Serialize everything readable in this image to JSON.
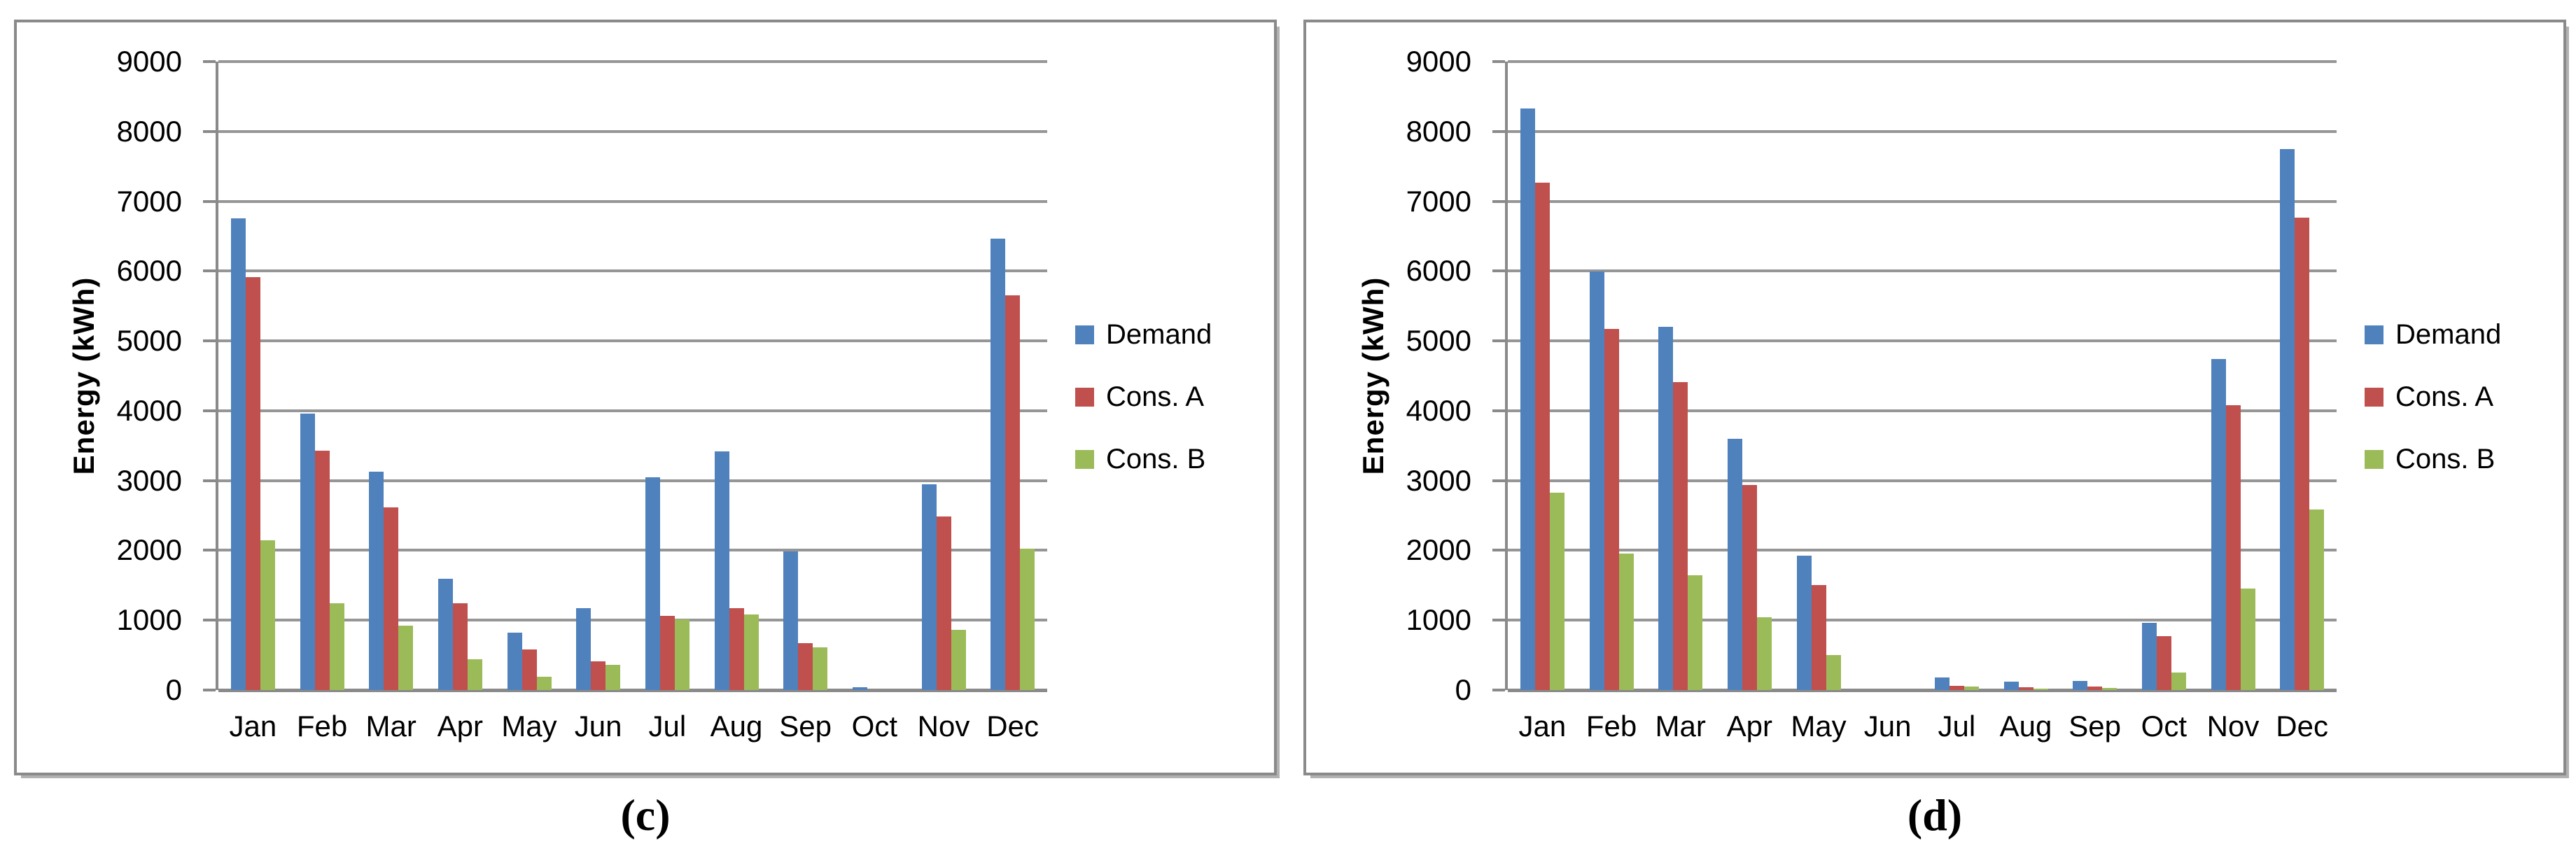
{
  "axis": {
    "ylabel": "Energy (kWh)",
    "ymin": 0,
    "ymax": 9000,
    "ytick_step": 1000,
    "yticks": [
      0,
      1000,
      2000,
      3000,
      4000,
      5000,
      6000,
      7000,
      8000,
      9000
    ]
  },
  "legend": [
    "Demand",
    "Cons. A",
    "Cons. B"
  ],
  "colors": {
    "demand": "#4F81BD",
    "cons_a": "#C0504D",
    "cons_b": "#9BBB59",
    "gridline": "#969696",
    "axis": "#8A8A8A",
    "panel_border": "#8A8A8A"
  },
  "chart_data": [
    {
      "type": "bar",
      "caption": "(c)",
      "title": "",
      "xlabel": "",
      "ylabel": "Energy (kWh)",
      "ylim": [
        0,
        9000
      ],
      "ytick_step": 1000,
      "grid": true,
      "legend_position": "right",
      "categories": [
        "Jan",
        "Feb",
        "Mar",
        "Apr",
        "May",
        "Jun",
        "Jul",
        "Aug",
        "Sep",
        "Oct",
        "Nov",
        "Dec"
      ],
      "series": [
        {
          "name": "Demand",
          "color": "#4F81BD",
          "values": [
            6760,
            3960,
            3130,
            1590,
            820,
            1170,
            3050,
            3420,
            1980,
            40,
            2950,
            6460
          ]
        },
        {
          "name": "Cons. A",
          "color": "#C0504D",
          "values": [
            5910,
            3430,
            2620,
            1240,
            580,
            410,
            1060,
            1170,
            670,
            0,
            2490,
            5650
          ]
        },
        {
          "name": "Cons. B",
          "color": "#9BBB59",
          "values": [
            2140,
            1240,
            920,
            440,
            190,
            360,
            1010,
            1080,
            610,
            0,
            860,
            2020
          ]
        }
      ]
    },
    {
      "type": "bar",
      "caption": "(d)",
      "title": "",
      "xlabel": "",
      "ylabel": "Energy (kWh)",
      "ylim": [
        0,
        9000
      ],
      "ytick_step": 1000,
      "grid": true,
      "legend_position": "right",
      "categories": [
        "Jan",
        "Feb",
        "Mar",
        "Apr",
        "May",
        "Jun",
        "Jul",
        "Aug",
        "Sep",
        "Oct",
        "Nov",
        "Dec"
      ],
      "series": [
        {
          "name": "Demand",
          "color": "#4F81BD",
          "values": [
            8330,
            5990,
            5200,
            3600,
            1920,
            0,
            180,
            120,
            130,
            960,
            4740,
            7750
          ]
        },
        {
          "name": "Cons. A",
          "color": "#C0504D",
          "values": [
            7270,
            5170,
            4410,
            2940,
            1500,
            0,
            60,
            40,
            50,
            770,
            4080,
            6770
          ]
        },
        {
          "name": "Cons. B",
          "color": "#9BBB59",
          "values": [
            2830,
            1950,
            1640,
            1040,
            500,
            0,
            50,
            25,
            35,
            250,
            1450,
            2590
          ]
        }
      ]
    }
  ]
}
